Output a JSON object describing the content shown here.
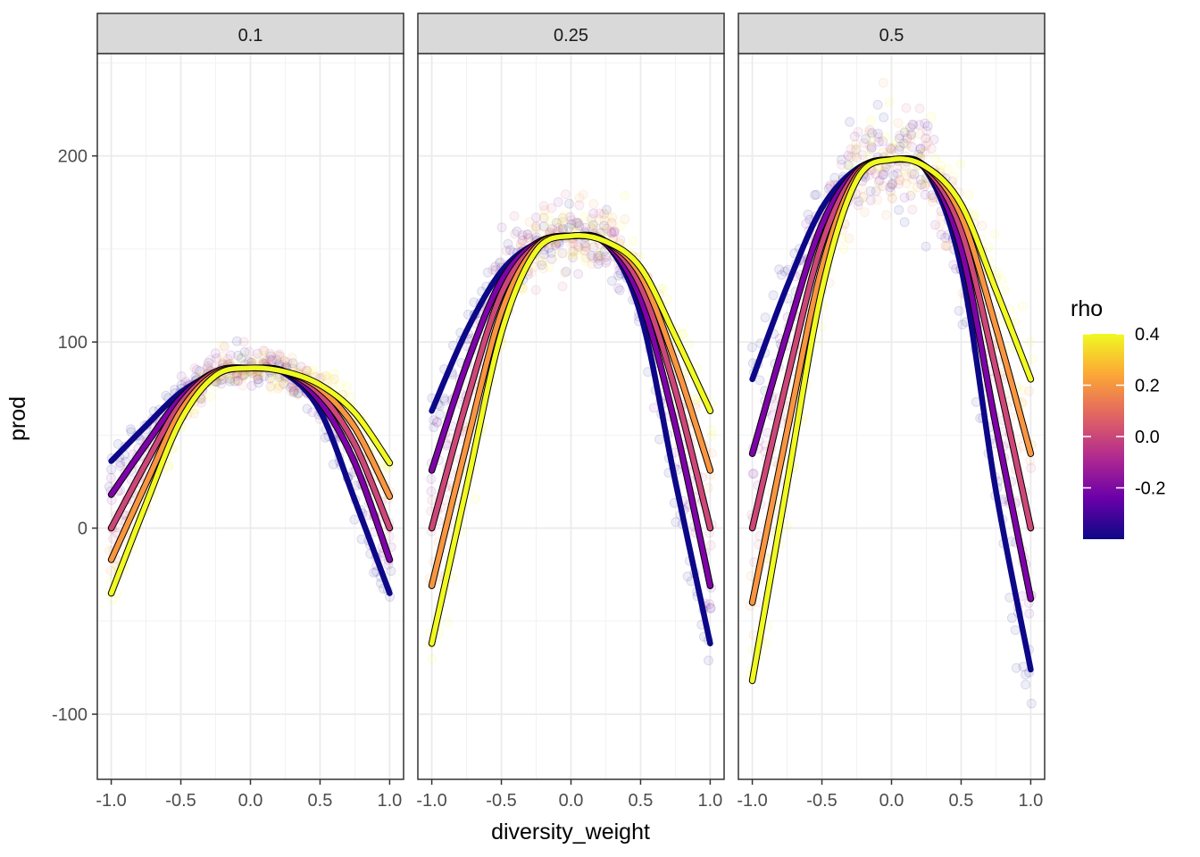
{
  "chart_data": {
    "type": "scatter",
    "xlabel": "diversity_weight",
    "ylabel": "prod",
    "xlim": [
      -1.1,
      1.1
    ],
    "ylim": [
      -135,
      255
    ],
    "x_ticks": [
      -1.0,
      -0.5,
      0.0,
      0.5,
      1.0
    ],
    "x_tick_labels": [
      "-1.0",
      "-0.5",
      "0.0",
      "0.5",
      "1.0"
    ],
    "y_ticks": [
      -100,
      0,
      100,
      200
    ],
    "y_tick_labels": [
      "-100",
      "0",
      "100",
      "200"
    ],
    "grid": true,
    "legend": {
      "title": "rho",
      "placement": "right",
      "type": "colorbar",
      "range": [
        -0.4,
        0.4
      ],
      "ticks": [
        -0.2,
        0.0,
        0.2,
        0.4
      ],
      "tick_labels": [
        "-0.2",
        "0.0",
        "0.2",
        "0.4"
      ],
      "colors": [
        "#0d0887",
        "#6a00a8",
        "#b12a90",
        "#e16462",
        "#fca636",
        "#f0f921"
      ]
    },
    "rho_levels": [
      -0.4,
      -0.2,
      0.0,
      0.2,
      0.4
    ],
    "line_colors": [
      "#0d0887",
      "#7e03a8",
      "#cc4778",
      "#f89540",
      "#f0f921"
    ],
    "panels": [
      {
        "label": "0.1",
        "x": [
          -1.0,
          -0.75,
          -0.5,
          -0.25,
          0.0,
          0.25,
          0.5,
          0.75,
          1.0
        ],
        "series": [
          {
            "rho": -0.4,
            "y": [
              36,
              55,
              73,
              83,
              86,
              83,
              63,
              15,
              -35
            ]
          },
          {
            "rho": -0.2,
            "y": [
              18,
              45,
              70,
              84,
              86,
              84,
              68,
              35,
              -17
            ]
          },
          {
            "rho": 0.0,
            "y": [
              0,
              35,
              67,
              84,
              86,
              84,
              72,
              45,
              0
            ]
          },
          {
            "rho": 0.2,
            "y": [
              -17,
              24,
              63,
              83,
              86,
              84,
              75,
              54,
              17
            ]
          },
          {
            "rho": 0.4,
            "y": [
              -35,
              13,
              58,
              82,
              86,
              84,
              77,
              62,
              35
            ]
          }
        ]
      },
      {
        "label": "0.25",
        "x": [
          -1.0,
          -0.75,
          -0.5,
          -0.25,
          0.0,
          0.25,
          0.5,
          0.75,
          1.0
        ],
        "series": [
          {
            "rho": -0.4,
            "y": [
              63,
              106,
              138,
              153,
              157,
              153,
              115,
              25,
              -62
            ]
          },
          {
            "rho": -0.2,
            "y": [
              31,
              88,
              133,
              153,
              157,
              153,
              123,
              55,
              -31
            ]
          },
          {
            "rho": 0.0,
            "y": [
              0,
              68,
              126,
              152,
              157,
              154,
              130,
              74,
              0
            ]
          },
          {
            "rho": 0.2,
            "y": [
              -31,
              45,
              116,
              151,
              157,
              154,
              136,
              89,
              31
            ]
          },
          {
            "rho": 0.4,
            "y": [
              -62,
              22,
              105,
              149,
              157,
              154,
              140,
              103,
              63
            ]
          }
        ]
      },
      {
        "label": "0.5",
        "x": [
          -1.0,
          -0.75,
          -0.5,
          -0.25,
          0.0,
          0.25,
          0.5,
          0.75,
          1.0
        ],
        "series": [
          {
            "rho": -0.4,
            "y": [
              80,
              130,
              172,
              193,
              198,
              192,
              140,
              20,
              -76
            ]
          },
          {
            "rho": -0.2,
            "y": [
              40,
              105,
              163,
              192,
              198,
              193,
              150,
              55,
              -38
            ]
          },
          {
            "rho": 0.0,
            "y": [
              0,
              80,
              153,
              191,
              198,
              193,
              160,
              85,
              0
            ]
          },
          {
            "rho": 0.2,
            "y": [
              -40,
              52,
              140,
              189,
              198,
              194,
              168,
              108,
              40
            ]
          },
          {
            "rho": 0.4,
            "y": [
              -82,
              24,
              128,
              187,
              198,
              194,
              174,
              128,
              80
            ]
          }
        ]
      }
    ]
  }
}
